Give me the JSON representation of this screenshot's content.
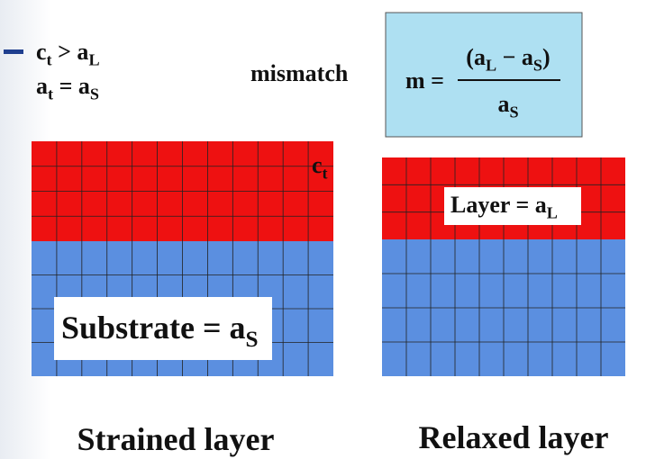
{
  "conditions": [
    [
      "c",
      "t",
      " > a",
      "L"
    ],
    [
      "a",
      "t",
      " = a",
      "S"
    ]
  ],
  "mismatch_label": "mismatch",
  "formula": {
    "lhs": "m =",
    "numerator": [
      "(a",
      "L",
      " − a",
      "S",
      ")"
    ],
    "denominator": [
      "a",
      "S"
    ]
  },
  "strained": {
    "height_label": [
      "c",
      "t"
    ],
    "substrate_label": [
      "Substrate = a",
      "S"
    ],
    "caption": "Strained layer"
  },
  "relaxed": {
    "layer_label": [
      "Layer = a",
      "L"
    ],
    "caption": "Relaxed layer"
  }
}
